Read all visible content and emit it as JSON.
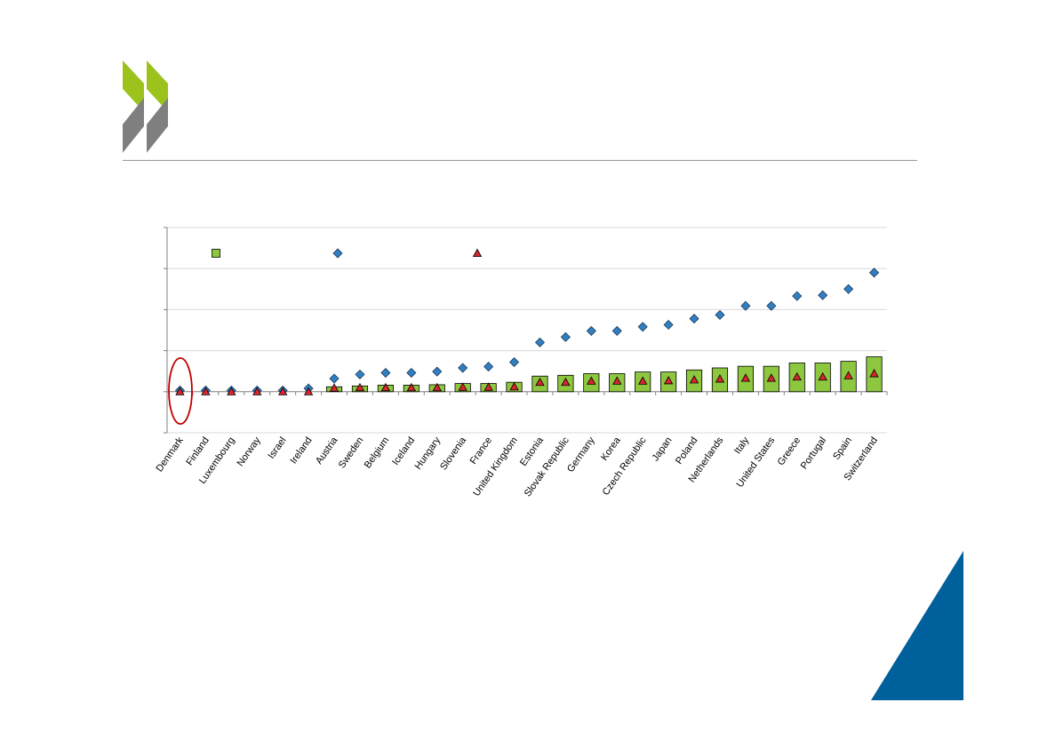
{
  "chart_data": {
    "type": "bar",
    "title": "",
    "xlabel": "",
    "ylabel": "",
    "ylim": [
      -10,
      40
    ],
    "grid": true,
    "legend": {
      "placement": "top",
      "entries": [
        "",
        "",
        ""
      ]
    },
    "categories": [
      "Denmark",
      "Finland",
      "Luxembourg",
      "Norway",
      "Israel",
      "Ireland",
      "Austria",
      "Sweden",
      "Belgium",
      "Iceland",
      "Hungary",
      "Slovenia",
      "France",
      "United Kingdom",
      "Estonia",
      "Slovak Republic",
      "Germany",
      "Korea",
      "Czech Republic",
      "Japan",
      "Poland",
      "Netherlands",
      "Italy",
      "United States",
      "Greece",
      "Portugal",
      "Spain",
      "Switzerland"
    ],
    "series": [
      {
        "marker": "bar",
        "color": "#8dc63f",
        "values": [
          0,
          0,
          0,
          0,
          0,
          0,
          1.2,
          1.4,
          1.6,
          1.6,
          1.7,
          2,
          2,
          2.3,
          3.8,
          4,
          4.4,
          4.4,
          4.8,
          4.8,
          5.3,
          5.8,
          6.2,
          6.2,
          7,
          7,
          7.4,
          8.5
        ]
      },
      {
        "marker": "diamond",
        "color": "#2f7fc1",
        "values": [
          0.3,
          0.3,
          0.3,
          0.3,
          0.3,
          0.8,
          3.2,
          4.2,
          4.6,
          4.6,
          4.9,
          5.8,
          6.1,
          7.2,
          12,
          13.3,
          14.8,
          14.8,
          15.8,
          16.3,
          17.8,
          18.7,
          20.9,
          20.9,
          23.3,
          23.5,
          25,
          29
        ]
      },
      {
        "marker": "triangle",
        "color": "#d7262e",
        "values": [
          0,
          0,
          0,
          0,
          0,
          0,
          0.9,
          1,
          1,
          1,
          1,
          1.1,
          1.1,
          1.2,
          2.3,
          2.3,
          2.6,
          2.6,
          2.6,
          2.7,
          2.9,
          3.1,
          3.3,
          3.3,
          3.6,
          3.6,
          3.9,
          4.4
        ]
      }
    ]
  },
  "colors": {
    "logo_green": "#9bc31c",
    "logo_gray": "#7f7f7f",
    "corner_blue": "#00609c",
    "highlight_ring": "#c00000"
  }
}
